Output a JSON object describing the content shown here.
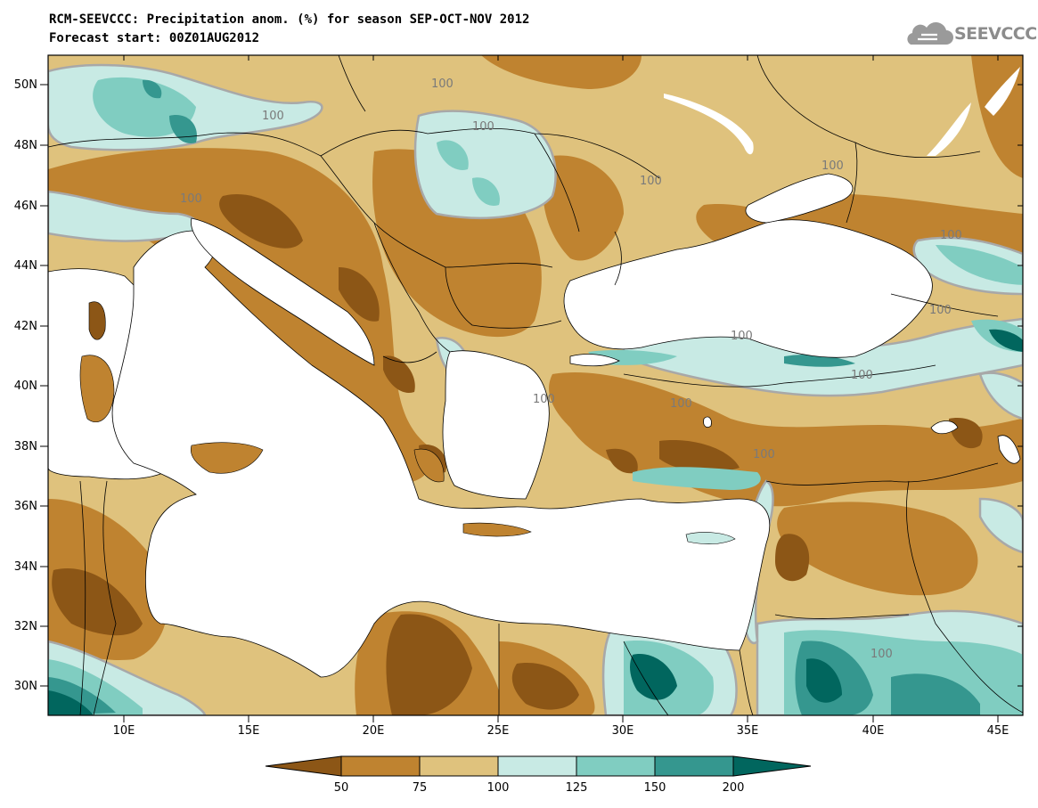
{
  "title": {
    "line1": "RCM-SEEVCCC: Precipitation anom. (%) for season SEP-OCT-NOV 2012",
    "line2": "Forecast start: 00Z01AUG2012"
  },
  "logo": {
    "text": "SEEVCCC",
    "icon": "cloud-logo-icon"
  },
  "map": {
    "lat_labels": [
      "50N",
      "48N",
      "46N",
      "44N",
      "42N",
      "40N",
      "38N",
      "36N",
      "34N",
      "32N",
      "30N"
    ],
    "lon_labels": [
      "10E",
      "15E",
      "20E",
      "25E",
      "30E",
      "35E",
      "40E",
      "45E"
    ],
    "contour_labels": [
      "100",
      "100",
      "100",
      "100",
      "100",
      "100",
      "100",
      "100",
      "100",
      "100",
      "100",
      "100",
      "100",
      "100"
    ]
  },
  "colorbar": {
    "labels": [
      "50",
      "75",
      "100",
      "125",
      "150",
      "200"
    ],
    "colors": [
      "#8c5616",
      "#bf8330",
      "#dfc27d",
      "#c8eae4",
      "#80cdc1",
      "#35978f",
      "#01665e"
    ]
  },
  "chart_data": {
    "type": "heatmap",
    "title": "RCM-SEEVCCC: Precipitation anom. (%) for season SEP-OCT-NOV 2012",
    "subtitle": "Forecast start: 00Z01AUG2012",
    "x_range": [
      7,
      46
    ],
    "y_range": [
      29,
      51
    ],
    "x_ticks": [
      "10E",
      "15E",
      "20E",
      "25E",
      "30E",
      "35E",
      "40E",
      "45E"
    ],
    "y_ticks": [
      "30N",
      "32N",
      "34N",
      "36N",
      "38N",
      "40N",
      "42N",
      "44N",
      "46N",
      "48N",
      "50N"
    ],
    "color_levels": [
      50,
      75,
      100,
      125,
      150,
      200
    ],
    "contour_value": 100
  }
}
